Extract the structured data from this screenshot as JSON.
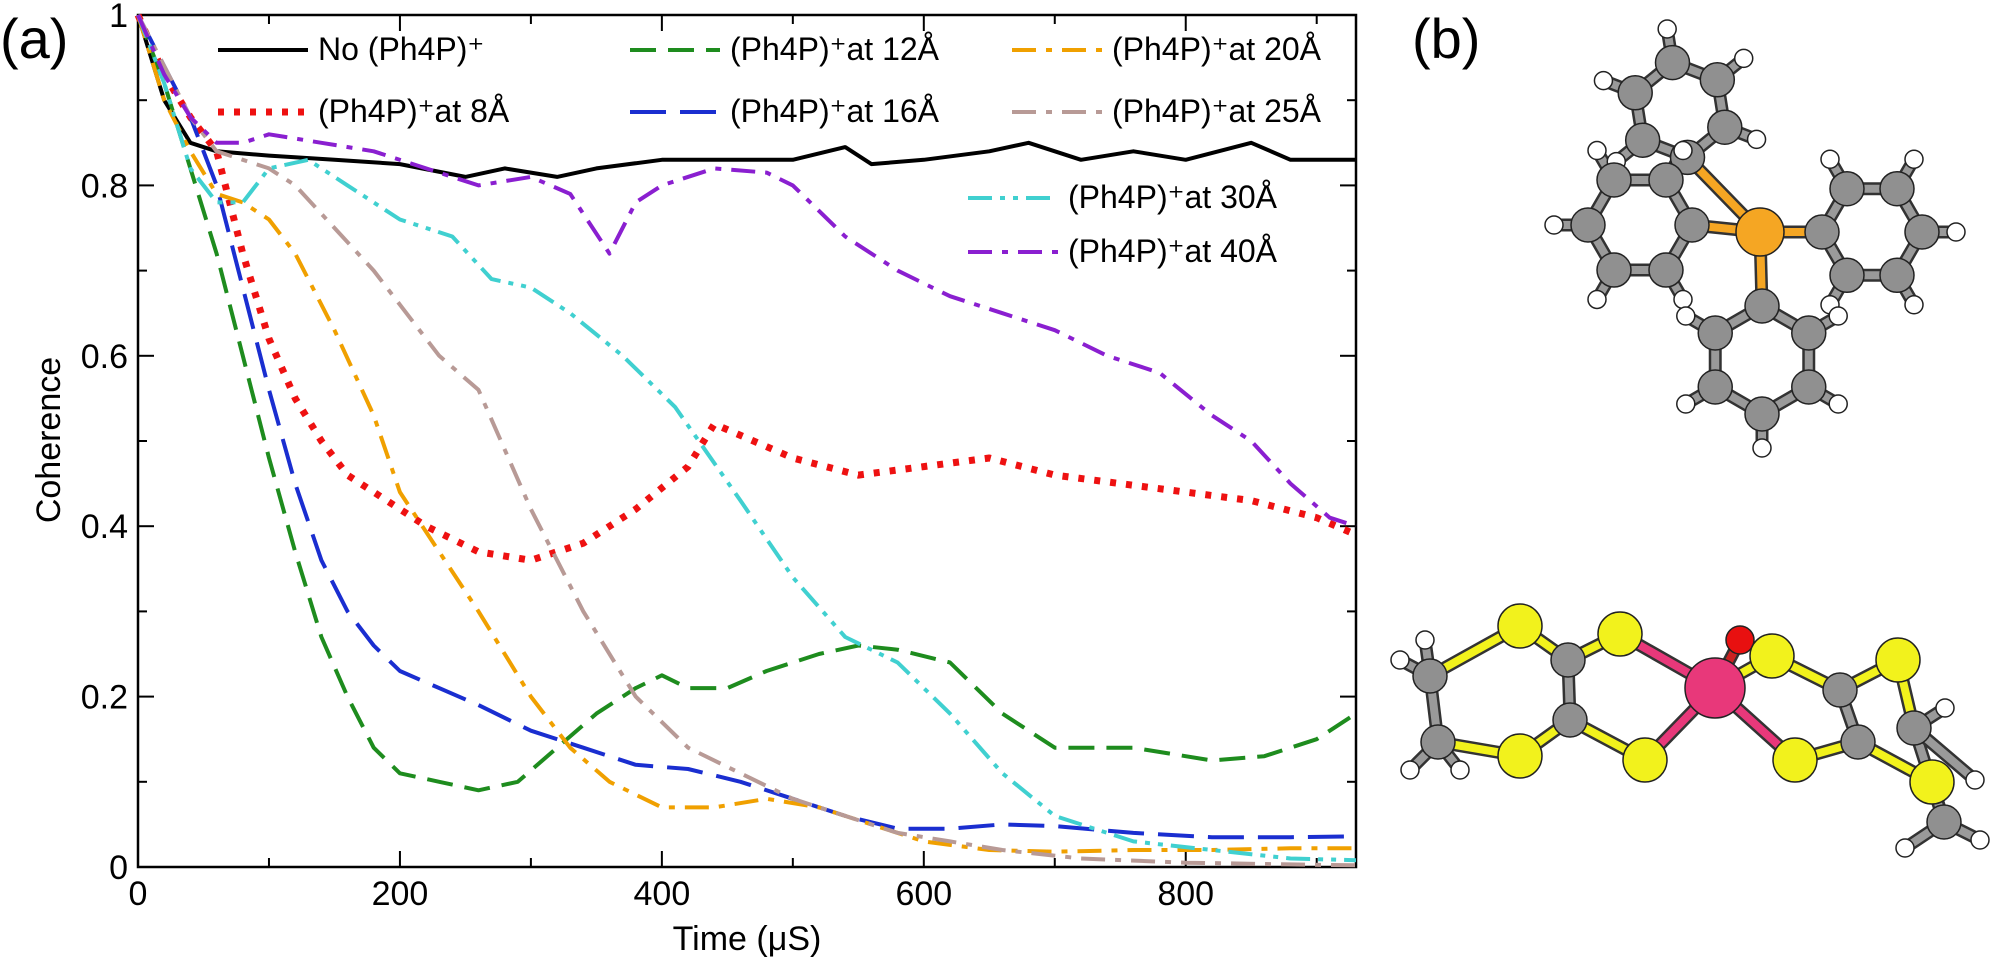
{
  "panels": {
    "a": "(a)",
    "b": "(b)"
  },
  "chart_data": {
    "type": "line",
    "title": "",
    "xlabel": "Time (μS)",
    "ylabel": "Coherence",
    "xlim": [
      0,
      930
    ],
    "ylim": [
      0,
      1
    ],
    "xticks": [
      0,
      200,
      400,
      600,
      800
    ],
    "yticks": [
      0,
      0.2,
      0.4,
      0.6,
      0.8,
      1
    ],
    "xtick_labels": [
      "0",
      "200",
      "400",
      "600",
      "800"
    ],
    "ytick_labels": [
      "0",
      "0.2",
      "0.4",
      "0.6",
      "0.8",
      "1"
    ],
    "grid": false,
    "legend_position": "top",
    "series": [
      {
        "name": "No (Ph4P)⁺",
        "color": "#000000",
        "dash": "solid",
        "x": [
          0,
          20,
          40,
          60,
          100,
          150,
          200,
          250,
          280,
          320,
          350,
          400,
          450,
          500,
          540,
          560,
          600,
          650,
          680,
          720,
          760,
          800,
          850,
          880,
          930
        ],
        "y": [
          1,
          0.9,
          0.85,
          0.84,
          0.835,
          0.83,
          0.825,
          0.81,
          0.82,
          0.81,
          0.82,
          0.83,
          0.83,
          0.83,
          0.845,
          0.825,
          0.83,
          0.84,
          0.85,
          0.83,
          0.84,
          0.83,
          0.85,
          0.83,
          0.83
        ]
      },
      {
        "name": "(Ph4P)⁺at 8Å",
        "color": "#ee1111",
        "dash": "dot",
        "x": [
          0,
          20,
          40,
          60,
          80,
          100,
          120,
          140,
          160,
          190,
          220,
          260,
          300,
          340,
          380,
          420,
          440,
          470,
          500,
          550,
          600,
          650,
          700,
          750,
          800,
          850,
          900,
          930
        ],
        "y": [
          1,
          0.93,
          0.88,
          0.84,
          0.72,
          0.62,
          0.55,
          0.5,
          0.46,
          0.43,
          0.4,
          0.37,
          0.36,
          0.38,
          0.42,
          0.47,
          0.52,
          0.5,
          0.48,
          0.46,
          0.47,
          0.48,
          0.46,
          0.45,
          0.44,
          0.43,
          0.41,
          0.39
        ]
      },
      {
        "name": "(Ph4P)⁺at 12Å",
        "color": "#1e8c1e",
        "dash": "dash",
        "x": [
          0,
          20,
          40,
          60,
          80,
          100,
          120,
          140,
          160,
          180,
          200,
          230,
          260,
          290,
          320,
          350,
          380,
          400,
          420,
          450,
          480,
          520,
          550,
          580,
          620,
          660,
          700,
          760,
          820,
          860,
          900,
          930
        ],
        "y": [
          1,
          0.92,
          0.82,
          0.72,
          0.6,
          0.48,
          0.37,
          0.27,
          0.2,
          0.14,
          0.11,
          0.1,
          0.09,
          0.1,
          0.14,
          0.18,
          0.21,
          0.225,
          0.21,
          0.21,
          0.23,
          0.25,
          0.26,
          0.255,
          0.24,
          0.18,
          0.14,
          0.14,
          0.125,
          0.13,
          0.15,
          0.18
        ]
      },
      {
        "name": "(Ph4P)⁺at 16Å",
        "color": "#1a2ed0",
        "dash": "longdash",
        "x": [
          0,
          20,
          40,
          60,
          80,
          100,
          120,
          140,
          160,
          180,
          200,
          230,
          260,
          300,
          340,
          380,
          420,
          460,
          500,
          540,
          580,
          620,
          660,
          700,
          760,
          820,
          880,
          930
        ],
        "y": [
          1,
          0.94,
          0.88,
          0.8,
          0.68,
          0.56,
          0.45,
          0.36,
          0.3,
          0.26,
          0.23,
          0.21,
          0.19,
          0.16,
          0.14,
          0.12,
          0.115,
          0.1,
          0.08,
          0.06,
          0.045,
          0.045,
          0.05,
          0.048,
          0.04,
          0.035,
          0.035,
          0.036
        ]
      },
      {
        "name": "(Ph4P)⁺at 20Å",
        "color": "#f0a000",
        "dash": "dashdot",
        "x": [
          0,
          20,
          40,
          60,
          80,
          100,
          120,
          150,
          180,
          200,
          230,
          260,
          300,
          330,
          360,
          400,
          440,
          480,
          520,
          560,
          600,
          650,
          700,
          760,
          820,
          880,
          930
        ],
        "y": [
          1,
          0.9,
          0.84,
          0.79,
          0.78,
          0.76,
          0.72,
          0.63,
          0.53,
          0.44,
          0.37,
          0.3,
          0.2,
          0.14,
          0.1,
          0.07,
          0.07,
          0.08,
          0.07,
          0.05,
          0.03,
          0.02,
          0.018,
          0.02,
          0.02,
          0.022,
          0.022
        ]
      },
      {
        "name": "(Ph4P)⁺at 25Å",
        "color": "#b89a96",
        "dash": "dashdot",
        "x": [
          0,
          20,
          40,
          60,
          80,
          100,
          120,
          150,
          180,
          200,
          230,
          260,
          300,
          340,
          380,
          420,
          460,
          500,
          540,
          580,
          620,
          660,
          720,
          800,
          880,
          930
        ],
        "y": [
          1,
          0.94,
          0.88,
          0.84,
          0.83,
          0.82,
          0.8,
          0.75,
          0.7,
          0.66,
          0.6,
          0.56,
          0.42,
          0.3,
          0.2,
          0.14,
          0.11,
          0.08,
          0.06,
          0.04,
          0.03,
          0.02,
          0.01,
          0.005,
          0.003,
          0.002
        ]
      },
      {
        "name": "(Ph4P)⁺at 30Å",
        "color": "#40d0d0",
        "dash": "dashdotdot",
        "x": [
          0,
          20,
          40,
          60,
          80,
          100,
          130,
          160,
          200,
          240,
          270,
          300,
          330,
          370,
          410,
          460,
          500,
          540,
          580,
          620,
          660,
          700,
          760,
          820,
          880,
          930
        ],
        "y": [
          1,
          0.92,
          0.82,
          0.78,
          0.78,
          0.82,
          0.83,
          0.8,
          0.76,
          0.74,
          0.69,
          0.68,
          0.65,
          0.6,
          0.54,
          0.43,
          0.34,
          0.27,
          0.24,
          0.18,
          0.11,
          0.06,
          0.03,
          0.02,
          0.01,
          0.008
        ]
      },
      {
        "name": "(Ph4P)⁺at 40Å",
        "color": "#8a1fd0",
        "dash": "dashdot",
        "x": [
          0,
          20,
          40,
          60,
          80,
          100,
          140,
          180,
          220,
          260,
          300,
          330,
          360,
          380,
          400,
          440,
          480,
          500,
          540,
          580,
          620,
          660,
          700,
          740,
          780,
          820,
          850,
          880,
          910,
          930
        ],
        "y": [
          1,
          0.93,
          0.88,
          0.85,
          0.85,
          0.86,
          0.85,
          0.84,
          0.82,
          0.8,
          0.81,
          0.79,
          0.72,
          0.78,
          0.8,
          0.82,
          0.815,
          0.8,
          0.74,
          0.7,
          0.67,
          0.65,
          0.63,
          0.6,
          0.58,
          0.53,
          0.5,
          0.45,
          0.41,
          0.4
        ]
      }
    ]
  }
}
